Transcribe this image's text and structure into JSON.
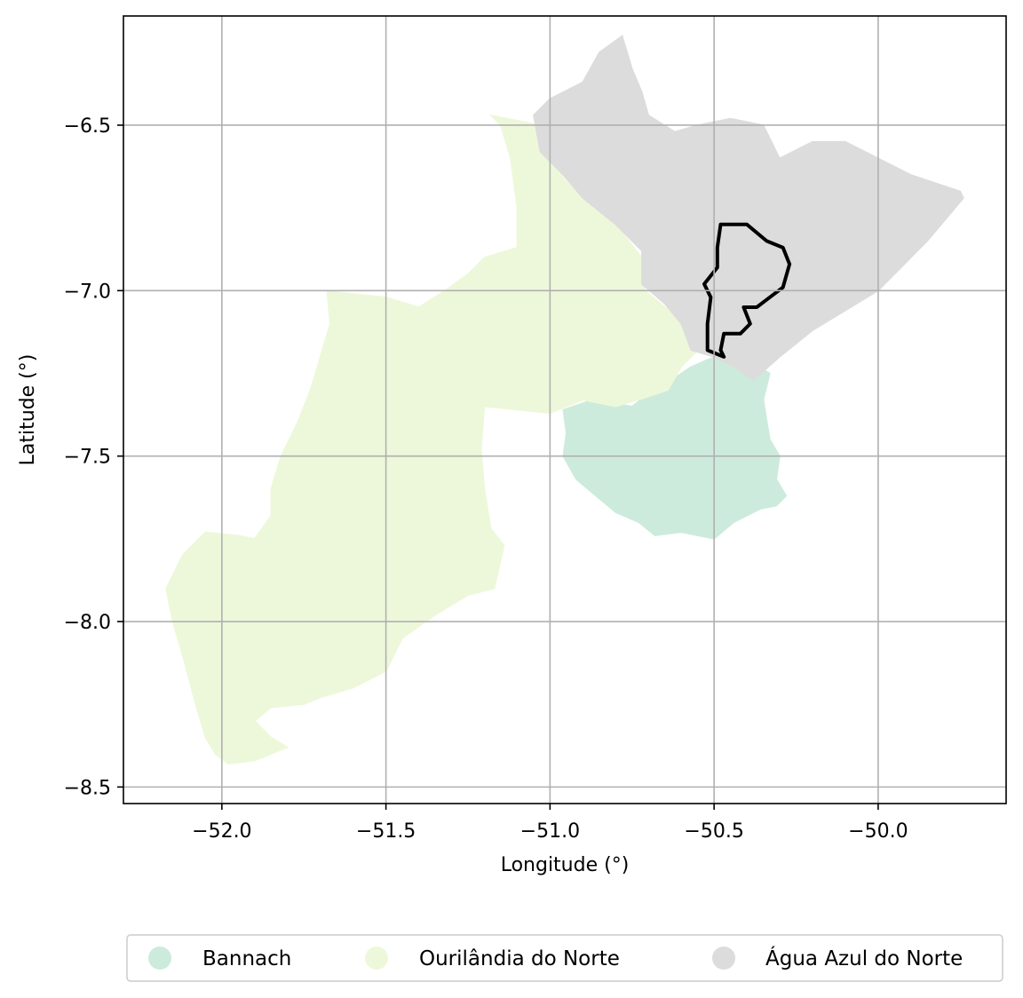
{
  "chart_data": {
    "type": "map",
    "xlabel": "Longitude (°)",
    "ylabel": "Latitude (°)",
    "xlim": [
      -52.3,
      -49.61
    ],
    "ylim": [
      -8.55,
      -6.17
    ],
    "x_ticks": [
      {
        "value": -52.0,
        "label": "−52.0"
      },
      {
        "value": -51.5,
        "label": "−51.5"
      },
      {
        "value": -51.0,
        "label": "−51.0"
      },
      {
        "value": -50.5,
        "label": "−50.5"
      },
      {
        "value": -50.0,
        "label": "−50.0"
      }
    ],
    "y_ticks": [
      {
        "value": -6.5,
        "label": "−6.5"
      },
      {
        "value": -7.0,
        "label": "−7.0"
      },
      {
        "value": -7.5,
        "label": "−7.5"
      },
      {
        "value": -8.0,
        "label": "−8.0"
      },
      {
        "value": -8.5,
        "label": "−8.5"
      }
    ],
    "grid": true,
    "legend_position": "bottom",
    "regions": [
      {
        "name": "Bannach",
        "color": "#cdebdc",
        "outline": [
          [
            -50.96,
            -7.36
          ],
          [
            -50.87,
            -7.33
          ],
          [
            -50.75,
            -7.35
          ],
          [
            -50.7,
            -7.31
          ],
          [
            -50.63,
            -7.27
          ],
          [
            -50.57,
            -7.23
          ],
          [
            -50.5,
            -7.2
          ],
          [
            -50.4,
            -7.21
          ],
          [
            -50.33,
            -7.25
          ],
          [
            -50.35,
            -7.33
          ],
          [
            -50.33,
            -7.45
          ],
          [
            -50.3,
            -7.5
          ],
          [
            -50.31,
            -7.57
          ],
          [
            -50.28,
            -7.62
          ],
          [
            -50.31,
            -7.65
          ],
          [
            -50.36,
            -7.66
          ],
          [
            -50.44,
            -7.7
          ],
          [
            -50.5,
            -7.75
          ],
          [
            -50.6,
            -7.73
          ],
          [
            -50.68,
            -7.74
          ],
          [
            -50.73,
            -7.7
          ],
          [
            -50.8,
            -7.67
          ],
          [
            -50.86,
            -7.62
          ],
          [
            -50.92,
            -7.57
          ],
          [
            -50.96,
            -7.5
          ],
          [
            -50.95,
            -7.43
          ]
        ]
      },
      {
        "name": "Ourilândia do Norte",
        "color": "#edf8da",
        "outline": [
          [
            -51.18,
            -6.47
          ],
          [
            -51.03,
            -6.5
          ],
          [
            -51.0,
            -6.57
          ],
          [
            -50.96,
            -6.66
          ],
          [
            -50.9,
            -6.72
          ],
          [
            -50.8,
            -6.8
          ],
          [
            -50.72,
            -6.9
          ],
          [
            -50.71,
            -7.0
          ],
          [
            -50.65,
            -7.05
          ],
          [
            -50.55,
            -7.12
          ],
          [
            -50.55,
            -7.18
          ],
          [
            -50.6,
            -7.23
          ],
          [
            -50.64,
            -7.3
          ],
          [
            -50.7,
            -7.32
          ],
          [
            -50.8,
            -7.35
          ],
          [
            -50.9,
            -7.33
          ],
          [
            -51.0,
            -7.37
          ],
          [
            -51.1,
            -7.36
          ],
          [
            -51.2,
            -7.35
          ],
          [
            -51.21,
            -7.48
          ],
          [
            -51.2,
            -7.6
          ],
          [
            -51.18,
            -7.72
          ],
          [
            -51.14,
            -7.77
          ],
          [
            -51.17,
            -7.9
          ],
          [
            -51.25,
            -7.92
          ],
          [
            -51.35,
            -7.98
          ],
          [
            -51.45,
            -8.05
          ],
          [
            -51.5,
            -8.15
          ],
          [
            -51.6,
            -8.2
          ],
          [
            -51.7,
            -8.23
          ],
          [
            -51.75,
            -8.25
          ],
          [
            -51.85,
            -8.26
          ],
          [
            -51.9,
            -8.3
          ],
          [
            -51.85,
            -8.35
          ],
          [
            -51.8,
            -8.38
          ],
          [
            -51.9,
            -8.42
          ],
          [
            -51.98,
            -8.43
          ],
          [
            -52.02,
            -8.4
          ],
          [
            -52.05,
            -8.35
          ],
          [
            -52.08,
            -8.25
          ],
          [
            -52.12,
            -8.1
          ],
          [
            -52.15,
            -8.0
          ],
          [
            -52.17,
            -7.9
          ],
          [
            -52.12,
            -7.8
          ],
          [
            -52.05,
            -7.73
          ],
          [
            -51.95,
            -7.74
          ],
          [
            -51.9,
            -7.75
          ],
          [
            -51.85,
            -7.68
          ],
          [
            -51.85,
            -7.6
          ],
          [
            -51.82,
            -7.5
          ],
          [
            -51.77,
            -7.4
          ],
          [
            -51.73,
            -7.3
          ],
          [
            -51.7,
            -7.2
          ],
          [
            -51.67,
            -7.1
          ],
          [
            -51.68,
            -7.0
          ],
          [
            -51.6,
            -7.01
          ],
          [
            -51.5,
            -7.02
          ],
          [
            -51.4,
            -7.05
          ],
          [
            -51.32,
            -7.0
          ],
          [
            -51.25,
            -6.95
          ],
          [
            -51.2,
            -6.9
          ],
          [
            -51.1,
            -6.87
          ],
          [
            -51.1,
            -6.75
          ],
          [
            -51.12,
            -6.6
          ],
          [
            -51.15,
            -6.5
          ]
        ]
      },
      {
        "name": "Água Azul do Norte",
        "color": "#dcdcdc",
        "outline": [
          [
            -51.05,
            -6.47
          ],
          [
            -51.0,
            -6.42
          ],
          [
            -50.9,
            -6.37
          ],
          [
            -50.85,
            -6.28
          ],
          [
            -50.78,
            -6.23
          ],
          [
            -50.75,
            -6.33
          ],
          [
            -50.72,
            -6.4
          ],
          [
            -50.7,
            -6.47
          ],
          [
            -50.62,
            -6.52
          ],
          [
            -50.55,
            -6.5
          ],
          [
            -50.45,
            -6.48
          ],
          [
            -50.35,
            -6.5
          ],
          [
            -50.3,
            -6.6
          ],
          [
            -50.2,
            -6.55
          ],
          [
            -50.1,
            -6.55
          ],
          [
            -50.0,
            -6.6
          ],
          [
            -49.9,
            -6.65
          ],
          [
            -49.75,
            -6.7
          ],
          [
            -49.74,
            -6.72
          ],
          [
            -49.85,
            -6.85
          ],
          [
            -50.0,
            -7.0
          ],
          [
            -50.2,
            -7.12
          ],
          [
            -50.3,
            -7.2
          ],
          [
            -50.38,
            -7.27
          ],
          [
            -50.44,
            -7.23
          ],
          [
            -50.5,
            -7.2
          ],
          [
            -50.57,
            -7.18
          ],
          [
            -50.6,
            -7.1
          ],
          [
            -50.65,
            -7.04
          ],
          [
            -50.72,
            -6.98
          ],
          [
            -50.72,
            -6.88
          ],
          [
            -50.8,
            -6.8
          ],
          [
            -50.9,
            -6.72
          ],
          [
            -50.96,
            -6.65
          ],
          [
            -51.03,
            -6.58
          ]
        ]
      }
    ],
    "highlight_outline": {
      "color": "#000000",
      "outline": [
        [
          -50.48,
          -6.8
        ],
        [
          -50.4,
          -6.8
        ],
        [
          -50.34,
          -6.85
        ],
        [
          -50.29,
          -6.87
        ],
        [
          -50.27,
          -6.92
        ],
        [
          -50.29,
          -6.99
        ],
        [
          -50.33,
          -7.02
        ],
        [
          -50.37,
          -7.05
        ],
        [
          -50.41,
          -7.05
        ],
        [
          -50.39,
          -7.1
        ],
        [
          -50.42,
          -7.13
        ],
        [
          -50.47,
          -7.13
        ],
        [
          -50.48,
          -7.18
        ],
        [
          -50.47,
          -7.2
        ],
        [
          -50.52,
          -7.18
        ],
        [
          -50.52,
          -7.1
        ],
        [
          -50.51,
          -7.02
        ],
        [
          -50.53,
          -6.98
        ],
        [
          -50.49,
          -6.93
        ],
        [
          -50.49,
          -6.87
        ]
      ]
    }
  },
  "legend": {
    "items": [
      {
        "label": "Bannach",
        "color": "#cdebdc"
      },
      {
        "label": "Ourilândia do Norte",
        "color": "#edf8da"
      },
      {
        "label": "Água Azul do Norte",
        "color": "#dcdcdc"
      }
    ]
  }
}
